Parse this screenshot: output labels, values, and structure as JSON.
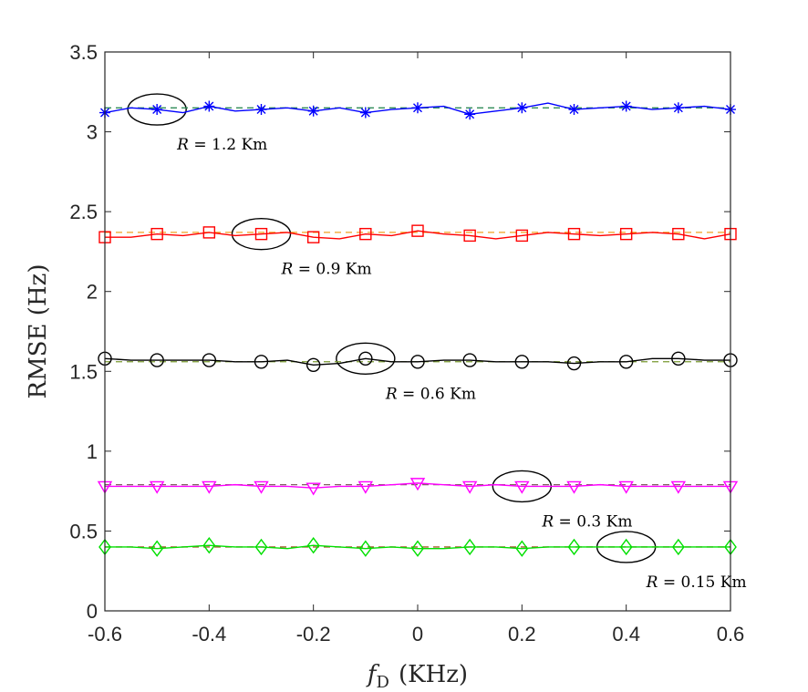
{
  "chart_data": {
    "type": "line",
    "title": "",
    "xlabel_var": "f",
    "xlabel_sub": "D",
    "xlabel_unit": "(KHz)",
    "ylabel": "RMSE (Hz)",
    "xlim": [
      -0.6,
      0.6
    ],
    "ylim": [
      0,
      3.5
    ],
    "x_ticks": [
      -0.6,
      -0.4,
      -0.2,
      0,
      0.2,
      0.4,
      0.6
    ],
    "x_tick_labels": [
      "-0.6",
      "-0.4",
      "-0.2",
      "0",
      "0.2",
      "0.4",
      "0.6"
    ],
    "y_ticks": [
      0,
      0.5,
      1,
      1.5,
      2,
      2.5,
      3,
      3.5
    ],
    "y_tick_labels": [
      "0",
      "0.5",
      "1",
      "1.5",
      "2",
      "2.5",
      "3",
      "3.5"
    ],
    "grid": false,
    "x": [
      -0.6,
      -0.55,
      -0.5,
      -0.45,
      -0.4,
      -0.35,
      -0.3,
      -0.25,
      -0.2,
      -0.15,
      -0.1,
      -0.05,
      0,
      0.05,
      0.1,
      0.15,
      0.2,
      0.25,
      0.3,
      0.35,
      0.4,
      0.45,
      0.5,
      0.55,
      0.6
    ],
    "series": [
      {
        "name": "R = 1.2 Km",
        "annotation": "R = 1.2 Km",
        "marker": "asterisk",
        "color": "#0000ff",
        "ref_color": "#2e8b57",
        "ref_value": 3.15,
        "ellipse_x": -0.5,
        "values": [
          3.12,
          3.15,
          3.14,
          3.12,
          3.16,
          3.13,
          3.14,
          3.15,
          3.13,
          3.15,
          3.12,
          3.14,
          3.15,
          3.16,
          3.11,
          3.13,
          3.15,
          3.18,
          3.14,
          3.15,
          3.16,
          3.14,
          3.15,
          3.16,
          3.14
        ]
      },
      {
        "name": "R = 0.9 Km",
        "annotation": "R = 0.9 Km",
        "marker": "square",
        "color": "#ff0000",
        "ref_color": "#f0a020",
        "ref_value": 2.37,
        "ellipse_x": -0.3,
        "values": [
          2.34,
          2.34,
          2.36,
          2.35,
          2.37,
          2.35,
          2.36,
          2.37,
          2.34,
          2.33,
          2.36,
          2.35,
          2.38,
          2.36,
          2.35,
          2.33,
          2.35,
          2.37,
          2.36,
          2.35,
          2.36,
          2.37,
          2.36,
          2.33,
          2.36
        ]
      },
      {
        "name": "R = 0.6 Km",
        "annotation": "R = 0.6 Km",
        "marker": "circle",
        "color": "#000000",
        "ref_color": "#7a9a30",
        "ref_value": 1.56,
        "ellipse_x": -0.1,
        "values": [
          1.58,
          1.57,
          1.57,
          1.57,
          1.57,
          1.56,
          1.56,
          1.57,
          1.54,
          1.55,
          1.58,
          1.56,
          1.56,
          1.57,
          1.57,
          1.56,
          1.56,
          1.56,
          1.55,
          1.56,
          1.56,
          1.58,
          1.58,
          1.57,
          1.57
        ]
      },
      {
        "name": "R = 0.3 Km",
        "annotation": "R = 0.3 Km",
        "marker": "triangle-down",
        "color": "#ff00ff",
        "ref_color": "#806060",
        "ref_value": 0.79,
        "ellipse_x": 0.2,
        "values": [
          0.78,
          0.78,
          0.78,
          0.78,
          0.78,
          0.79,
          0.78,
          0.78,
          0.77,
          0.78,
          0.78,
          0.79,
          0.8,
          0.79,
          0.78,
          0.79,
          0.78,
          0.78,
          0.78,
          0.79,
          0.78,
          0.78,
          0.78,
          0.78,
          0.78
        ]
      },
      {
        "name": "R = 0.15 Km",
        "annotation": "R = 0.15 Km",
        "marker": "diamond",
        "color": "#00e000",
        "ref_color": "#a05a2c",
        "ref_value": 0.4,
        "ellipse_x": 0.4,
        "values": [
          0.4,
          0.4,
          0.39,
          0.4,
          0.41,
          0.4,
          0.4,
          0.39,
          0.41,
          0.4,
          0.39,
          0.4,
          0.39,
          0.39,
          0.4,
          0.4,
          0.39,
          0.4,
          0.4,
          0.4,
          0.4,
          0.4,
          0.4,
          0.4,
          0.4
        ]
      }
    ]
  }
}
